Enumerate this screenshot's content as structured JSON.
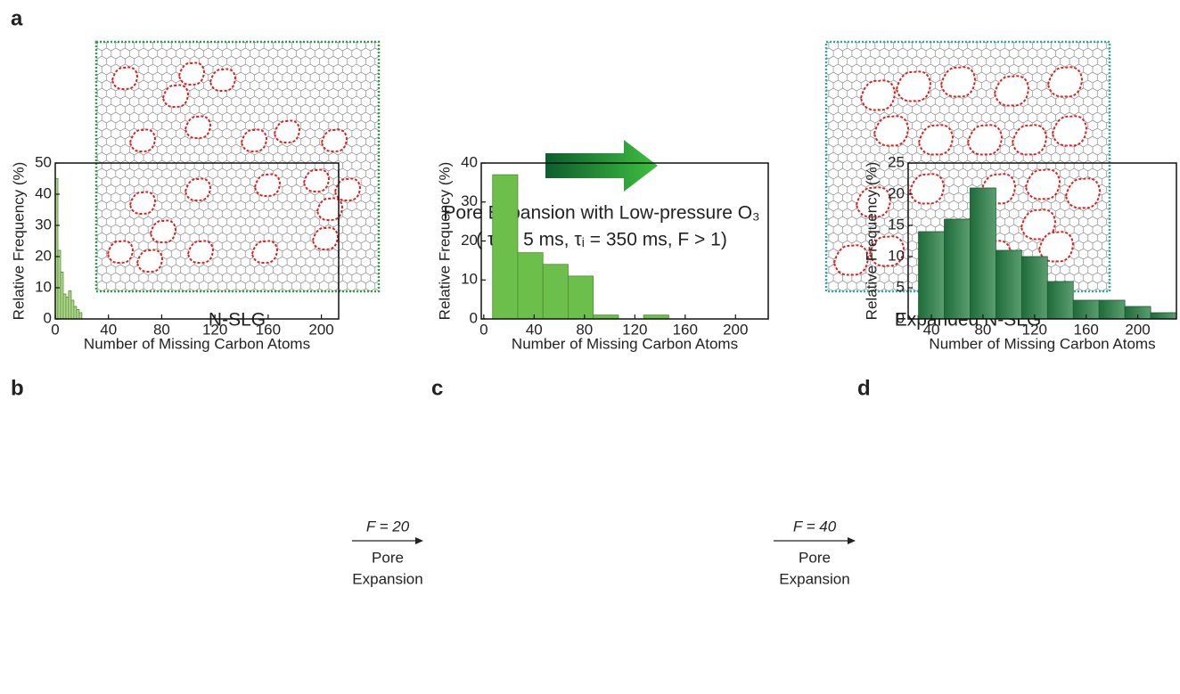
{
  "panel_a": {
    "label": "a",
    "left_caption": "N-SLG",
    "right_caption": "Expanded N-SLG",
    "arrow_text": "Pore Expansion with Low-pressure O₃",
    "conditions": "( τₒ = 5 ms,  τᵢ = 350 ms, F > 1)"
  },
  "transitions": [
    {
      "factor": "F = 20",
      "lines": [
        "Pore",
        "Expansion"
      ]
    },
    {
      "factor": "F = 40",
      "lines": [
        "Pore",
        "Expansion"
      ]
    }
  ],
  "chart_data": [
    {
      "type": "histogram",
      "panel_label": "b",
      "xlabel": "Number of Missing Carbon Atoms",
      "ylabel": "Relative Frequency (%)",
      "bins": [
        0,
        2,
        4,
        6,
        8,
        10,
        12,
        14,
        16,
        18,
        20
      ],
      "values": [
        45,
        22,
        15,
        8,
        7,
        9,
        6,
        4,
        3,
        2
      ],
      "color": "#b5d88f",
      "xlim": [
        0,
        213
      ],
      "ylim": [
        0,
        50
      ],
      "xticks": [
        0,
        40,
        80,
        120,
        160,
        200
      ],
      "yticks": [
        0,
        10,
        20,
        30,
        40,
        50
      ]
    },
    {
      "type": "histogram",
      "panel_label": "c",
      "xlabel": "Number of Missing Carbon Atoms",
      "ylabel": "Relative Frequency (%)",
      "bins": [
        7,
        27,
        47,
        67,
        87,
        107,
        127,
        147
      ],
      "values": [
        37,
        17,
        14,
        11,
        1,
        0,
        1
      ],
      "color": "#6cbf4a",
      "xlim": [
        -2,
        226
      ],
      "ylim": [
        0,
        40
      ],
      "xticks": [
        0,
        40,
        80,
        120,
        160,
        200
      ],
      "yticks": [
        0,
        10,
        20,
        30,
        40
      ]
    },
    {
      "type": "histogram",
      "panel_label": "d",
      "xlabel": "Number of Missing Carbon Atoms",
      "ylabel": "Relative Frequency (%)",
      "bins": [
        30,
        50,
        70,
        90,
        110,
        130,
        150,
        170,
        190,
        210,
        230
      ],
      "values": [
        14,
        16,
        21,
        11,
        10,
        6,
        3,
        3,
        2,
        1
      ],
      "color": "#2e7d4a",
      "xlim": [
        22,
        230
      ],
      "ylim": [
        0,
        25
      ],
      "xticks": [
        40,
        80,
        120,
        160,
        200
      ],
      "yticks": [
        0,
        5,
        10,
        15,
        20,
        25
      ]
    }
  ]
}
